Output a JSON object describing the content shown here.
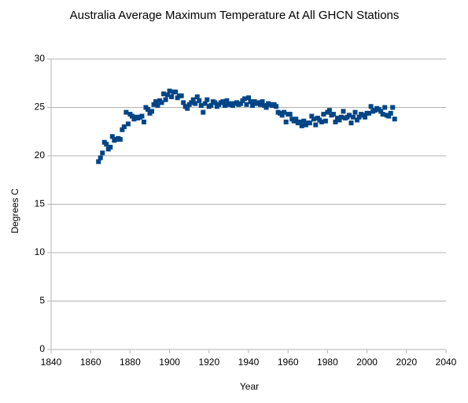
{
  "chart_data": {
    "type": "scatter",
    "title": "Australia Average Maximum Temperature  At All GHCN Stations",
    "x_label": "Year",
    "y_label": "Degrees C",
    "xlim": [
      1840,
      2040
    ],
    "xticks": [
      1840,
      1860,
      1880,
      1900,
      1920,
      1940,
      1960,
      1980,
      2000,
      2020,
      2040
    ],
    "ylim": [
      0,
      30
    ],
    "yticks": [
      0,
      5,
      10,
      15,
      20,
      25,
      30
    ],
    "grid": true,
    "color": "#004586",
    "x": [
      1864,
      1865,
      1866,
      1867,
      1868,
      1869,
      1870,
      1871,
      1872,
      1873,
      1874,
      1875,
      1876,
      1877,
      1878,
      1879,
      1880,
      1881,
      1882,
      1883,
      1884,
      1885,
      1886,
      1887,
      1888,
      1889,
      1890,
      1891,
      1892,
      1893,
      1894,
      1895,
      1896,
      1897,
      1898,
      1899,
      1900,
      1901,
      1902,
      1903,
      1904,
      1905,
      1906,
      1907,
      1908,
      1909,
      1910,
      1911,
      1912,
      1913,
      1914,
      1915,
      1916,
      1917,
      1918,
      1919,
      1920,
      1921,
      1922,
      1923,
      1924,
      1925,
      1926,
      1927,
      1928,
      1929,
      1930,
      1931,
      1932,
      1933,
      1934,
      1935,
      1936,
      1937,
      1938,
      1939,
      1940,
      1941,
      1942,
      1943,
      1944,
      1945,
      1946,
      1947,
      1948,
      1949,
      1950,
      1951,
      1952,
      1953,
      1954,
      1955,
      1956,
      1957,
      1958,
      1959,
      1960,
      1961,
      1962,
      1963,
      1964,
      1965,
      1966,
      1967,
      1968,
      1969,
      1970,
      1971,
      1972,
      1973,
      1974,
      1975,
      1976,
      1977,
      1978,
      1979,
      1980,
      1981,
      1982,
      1983,
      1984,
      1985,
      1986,
      1987,
      1988,
      1989,
      1990,
      1991,
      1992,
      1993,
      1994,
      1995,
      1996,
      1997,
      1998,
      1999,
      2000,
      2001,
      2002,
      2003,
      2004,
      2005,
      2006,
      2007,
      2008,
      2009,
      2010,
      2011,
      2012,
      2013,
      2014
    ],
    "values": [
      19.4,
      19.8,
      20.3,
      21.4,
      21.2,
      20.7,
      20.9,
      22.0,
      21.6,
      21.7,
      21.8,
      21.7,
      22.7,
      23.0,
      24.5,
      23.3,
      24.3,
      24.1,
      23.8,
      24.0,
      23.9,
      24.0,
      24.1,
      23.5,
      25.0,
      24.8,
      24.4,
      24.6,
      25.3,
      25.6,
      25.2,
      25.7,
      25.5,
      26.4,
      25.8,
      26.3,
      26.7,
      26.1,
      26.6,
      26.6,
      26.0,
      26.2,
      26.2,
      25.5,
      25.1,
      24.9,
      25.3,
      25.5,
      25.8,
      25.4,
      26.1,
      25.7,
      25.2,
      24.5,
      25.4,
      25.8,
      25.1,
      25.2,
      25.6,
      25.5,
      25.1,
      25.3,
      25.5,
      25.6,
      25.2,
      25.7,
      25.3,
      25.4,
      25.2,
      25.4,
      25.5,
      25.3,
      25.4,
      25.7,
      25.9,
      25.3,
      26.0,
      25.6,
      25.2,
      25.6,
      25.4,
      25.5,
      25.3,
      25.6,
      25.2,
      25.0,
      25.4,
      25.3,
      25.2,
      25.3,
      25.1,
      24.5,
      24.4,
      24.2,
      24.5,
      23.5,
      24.3,
      24.3,
      23.8,
      23.6,
      23.8,
      23.4,
      23.5,
      23.1,
      23.6,
      23.2,
      23.4,
      23.4,
      24.1,
      23.8,
      23.2,
      23.9,
      23.7,
      23.5,
      24.3,
      23.6,
      24.5,
      24.7,
      24.2,
      24.3,
      23.5,
      23.9,
      23.7,
      24.0,
      24.6,
      23.9,
      24.0,
      24.2,
      23.4,
      24.0,
      24.5,
      23.7,
      24.0,
      24.3,
      24.2,
      24.0,
      24.4,
      24.4,
      25.1,
      24.6,
      24.7,
      24.9,
      24.8,
      24.6,
      24.3,
      25.0,
      24.2,
      24.1,
      24.4,
      25.0,
      23.8
    ]
  }
}
